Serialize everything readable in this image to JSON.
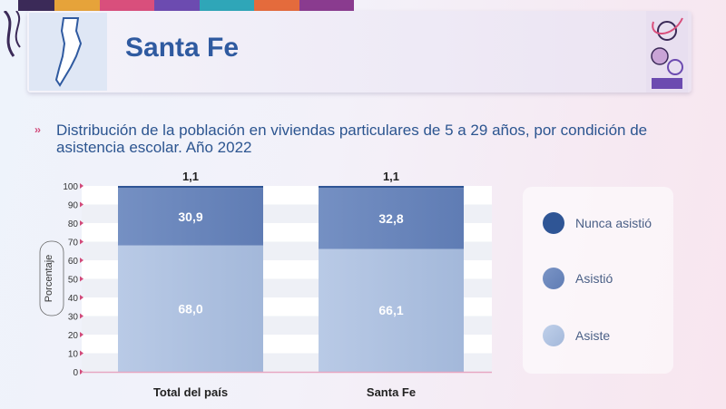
{
  "header": {
    "title": "Santa Fe"
  },
  "subtitle": "Distribución de la población en viviendas particulares de 5 a 29 años, por condición de asistencia escolar. Año 2022",
  "colors": {
    "nunca": "#2f5595",
    "asistio": "#5f7cb4",
    "asiste": "#a3b8da",
    "accent": "#d24a7a"
  },
  "chart_data": {
    "type": "bar",
    "stacked": true,
    "categories": [
      "Total del país",
      "Santa Fe"
    ],
    "series": [
      {
        "name": "Asiste",
        "values": [
          68.0,
          66.1
        ],
        "labels": [
          "68,0",
          "66,1"
        ]
      },
      {
        "name": "Asistió",
        "values": [
          30.9,
          32.8
        ],
        "labels": [
          "30,9",
          "32,8"
        ]
      },
      {
        "name": "Nunca asistió",
        "values": [
          1.1,
          1.1
        ],
        "labels": [
          "1,1",
          "1,1"
        ]
      }
    ],
    "ylabel": "Porcentaje",
    "ylim": [
      0,
      100
    ],
    "yticks": [
      "0",
      "10",
      "20",
      "30",
      "40",
      "50",
      "60",
      "70",
      "80",
      "90",
      "100"
    ],
    "grid": true,
    "legend_position": "right"
  }
}
